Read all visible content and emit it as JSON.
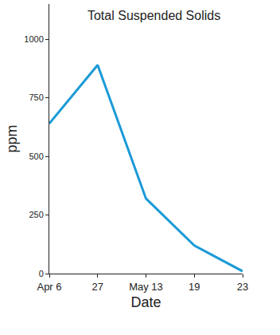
{
  "chart_data": {
    "type": "line",
    "title": "Total Suspended Solids",
    "x_label": "Date",
    "y_label": "ppm",
    "categories": [
      "Apr 6",
      "27",
      "May 13",
      "19",
      "23"
    ],
    "values": [
      640,
      890,
      320,
      120,
      10
    ],
    "color": "#1b9ad6",
    "ylim": [
      0,
      1150
    ],
    "yticks": [
      0,
      250,
      500,
      750,
      1000
    ],
    "grid": false
  }
}
